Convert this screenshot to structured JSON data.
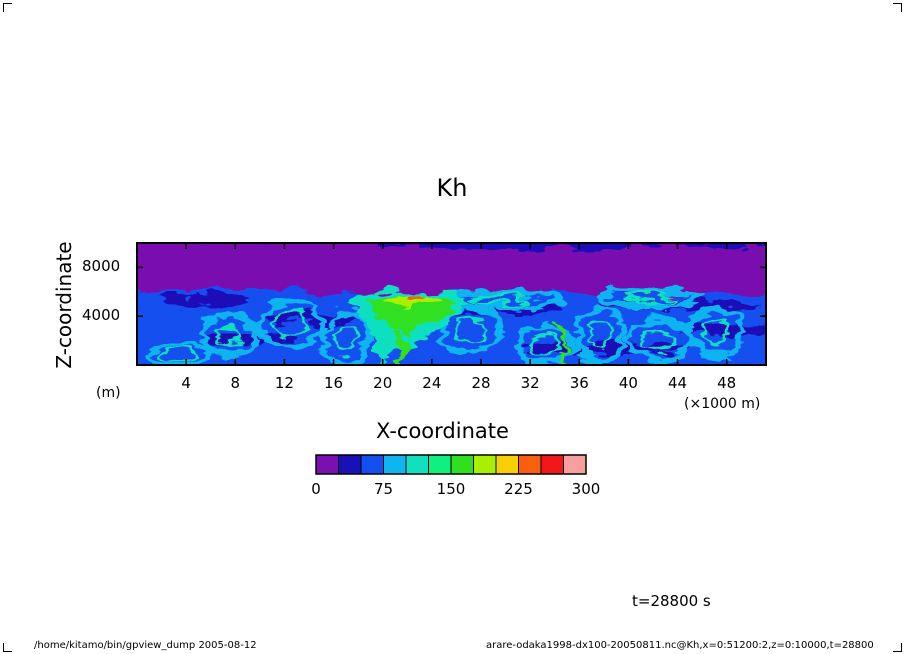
{
  "title": "Kh",
  "time_label": "t=28800 s",
  "footer": {
    "left": "/home/kitamo/bin/gpview_dump   2005-08-12",
    "right": "arare-odaka1998-dx100-20050811.nc@Kh,x=0:51200:2,z=0:10000,t=28800"
  },
  "chart_data": {
    "type": "heatmap",
    "title": "Kh",
    "xlabel": "X-coordinate",
    "ylabel": "Z-coordinate",
    "x_unit": "(×1000 m)",
    "y_unit": "(m)",
    "xlim": [
      0,
      51.2
    ],
    "ylim": [
      0,
      10000
    ],
    "x_ticks": [
      4,
      8,
      12,
      16,
      20,
      24,
      28,
      32,
      36,
      40,
      44,
      48
    ],
    "x_tick_labels": [
      "4",
      "8",
      "12",
      "16",
      "20",
      "24",
      "28",
      "32",
      "36",
      "40",
      "44",
      "48"
    ],
    "y_ticks": [
      4000,
      8000
    ],
    "y_tick_labels": [
      "4000",
      "8000"
    ],
    "colorbar": {
      "levels": [
        0,
        25,
        50,
        75,
        100,
        125,
        150,
        175,
        200,
        225,
        250,
        275,
        300
      ],
      "colors": [
        "#7a10b0",
        "#1a10b8",
        "#1450f0",
        "#10b4f0",
        "#10e0c0",
        "#10f080",
        "#30e020",
        "#a8f000",
        "#f8d000",
        "#f86010",
        "#f01818",
        "#f8a0a0"
      ],
      "labels": [
        "0",
        "75",
        "150",
        "225",
        "300"
      ],
      "label_values": [
        0,
        75,
        150,
        225,
        300
      ]
    },
    "field_description": "Eddy diffusivity Kh; roughly 0-50 in the upper layer (z > 6000 m), 25-100 with turbulent eddies below, peaks ~150-250 near x=18-26 km, z~5000-6000 m"
  }
}
